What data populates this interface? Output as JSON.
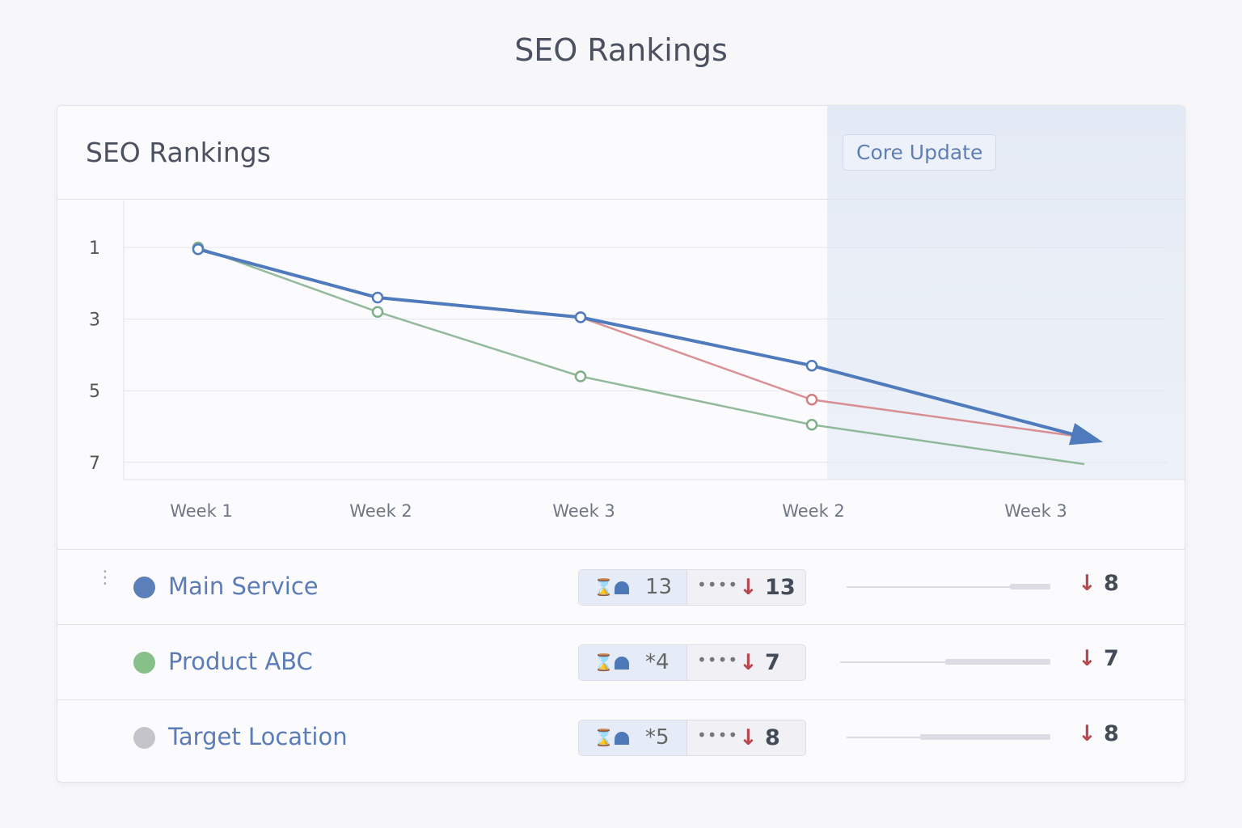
{
  "page_title": "SEO Rankings",
  "card_title": "SEO Rankings",
  "annotation": "Core Update",
  "chart_data": {
    "type": "line",
    "title": "SEO Rankings",
    "categories": [
      "Week 1",
      "Week 2",
      "Week 3",
      "Week 2",
      "Week 3"
    ],
    "y_ticks": [
      "1",
      "3",
      "5",
      "7"
    ],
    "ylim": [
      1,
      7.5
    ],
    "y_inverted": true,
    "grid": true,
    "shaded_region": "Core Update",
    "series": [
      {
        "name": "Main Service",
        "color": "#4f7bbd",
        "values": [
          1.05,
          2.4,
          2.95,
          4.3,
          6.3
        ]
      },
      {
        "name": "Product ABC",
        "color": "#7fae8a",
        "values": [
          1.0,
          2.8,
          4.6,
          5.95,
          7.05
        ]
      },
      {
        "name": "Target Location",
        "color": "#d47e82",
        "values": [
          null,
          null,
          2.95,
          5.25,
          6.3
        ]
      }
    ]
  },
  "rows": [
    {
      "name": "Main Service",
      "color": "#5b7fb8",
      "pill_value": "13",
      "delta": "13",
      "right_delta": "8",
      "fill": 0.2
    },
    {
      "name": "Product ABC",
      "color": "#88c08a",
      "pill_value": "*4",
      "delta": "7",
      "right_delta": "7",
      "fill": 0.5
    },
    {
      "name": "Target Location",
      "color": "#c5c4ca",
      "pill_value": "*5",
      "delta": "8",
      "right_delta": "8",
      "fill": 0.64
    }
  ],
  "icons": {
    "arrow": "↓",
    "dots": "••••",
    "grip": "⋮"
  }
}
